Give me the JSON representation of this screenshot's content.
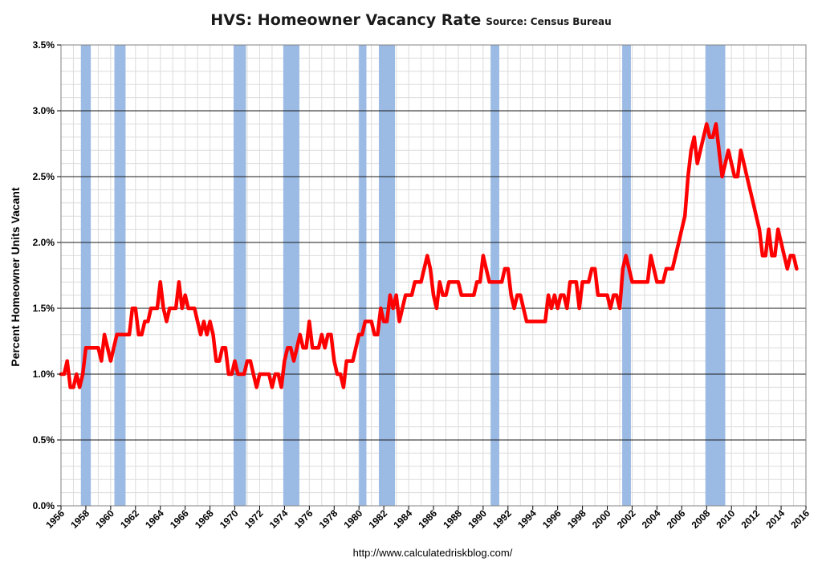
{
  "header": {
    "title": "HVS: Homeowner Vacancy Rate",
    "source": "Source: Census Bureau"
  },
  "footer": {
    "url": "http://www.calculatedriskblog.com/"
  },
  "chart_data": {
    "type": "line",
    "title": "HVS: Homeowner Vacancy Rate",
    "subtitle": "Source: Census Bureau",
    "xlabel": "",
    "ylabel": "Percent Homeowner Units Vacant",
    "xlim": [
      1956,
      2016
    ],
    "ylim": [
      0,
      3.5
    ],
    "x_ticks": [
      "1956",
      "1958",
      "1960",
      "1962",
      "1964",
      "1966",
      "1968",
      "1970",
      "1972",
      "1974",
      "1976",
      "1978",
      "1980",
      "1982",
      "1984",
      "1986",
      "1988",
      "1990",
      "1992",
      "1994",
      "1996",
      "1998",
      "2000",
      "2002",
      "2004",
      "2006",
      "2008",
      "2010",
      "2012",
      "2014",
      "2016"
    ],
    "y_ticks": [
      "0.0%",
      "0.5%",
      "1.0%",
      "1.5%",
      "2.0%",
      "2.5%",
      "3.0%",
      "3.5%"
    ],
    "grid": true,
    "line_color": "#ff0000",
    "recession_color": "#9bbbe4",
    "recessions": [
      [
        1957.6,
        1958.4
      ],
      [
        1960.3,
        1961.2
      ],
      [
        1969.9,
        1970.9
      ],
      [
        1973.9,
        1975.2
      ],
      [
        1980.0,
        1980.6
      ],
      [
        1981.6,
        1982.9
      ],
      [
        1990.6,
        1991.3
      ],
      [
        2001.2,
        2001.9
      ],
      [
        2007.9,
        2009.5
      ]
    ],
    "series": [
      {
        "points": [
          [
            1956.0,
            1.0
          ],
          [
            1956.25,
            1.0
          ],
          [
            1956.5,
            1.1
          ],
          [
            1956.75,
            0.9
          ],
          [
            1957.0,
            0.9
          ],
          [
            1957.25,
            1.0
          ],
          [
            1957.5,
            0.9
          ],
          [
            1957.75,
            1.0
          ],
          [
            1958.0,
            1.2
          ],
          [
            1958.5,
            1.2
          ],
          [
            1959.0,
            1.2
          ],
          [
            1959.25,
            1.1
          ],
          [
            1959.5,
            1.3
          ],
          [
            1959.75,
            1.2
          ],
          [
            1960.0,
            1.1
          ],
          [
            1960.25,
            1.2
          ],
          [
            1960.5,
            1.3
          ],
          [
            1961.0,
            1.3
          ],
          [
            1961.5,
            1.3
          ],
          [
            1961.75,
            1.5
          ],
          [
            1962.0,
            1.5
          ],
          [
            1962.25,
            1.3
          ],
          [
            1962.5,
            1.3
          ],
          [
            1962.75,
            1.4
          ],
          [
            1963.0,
            1.4
          ],
          [
            1963.25,
            1.5
          ],
          [
            1963.75,
            1.5
          ],
          [
            1964.0,
            1.7
          ],
          [
            1964.25,
            1.5
          ],
          [
            1964.5,
            1.4
          ],
          [
            1964.75,
            1.5
          ],
          [
            1965.0,
            1.5
          ],
          [
            1965.25,
            1.5
          ],
          [
            1965.5,
            1.7
          ],
          [
            1965.75,
            1.5
          ],
          [
            1966.0,
            1.6
          ],
          [
            1966.25,
            1.5
          ],
          [
            1966.5,
            1.5
          ],
          [
            1966.75,
            1.5
          ],
          [
            1967.0,
            1.4
          ],
          [
            1967.25,
            1.3
          ],
          [
            1967.5,
            1.4
          ],
          [
            1967.75,
            1.3
          ],
          [
            1968.0,
            1.4
          ],
          [
            1968.25,
            1.3
          ],
          [
            1968.5,
            1.1
          ],
          [
            1968.75,
            1.1
          ],
          [
            1969.0,
            1.2
          ],
          [
            1969.25,
            1.2
          ],
          [
            1969.5,
            1.0
          ],
          [
            1969.75,
            1.0
          ],
          [
            1970.0,
            1.1
          ],
          [
            1970.25,
            1.0
          ],
          [
            1970.5,
            1.0
          ],
          [
            1970.75,
            1.0
          ],
          [
            1971.0,
            1.1
          ],
          [
            1971.25,
            1.1
          ],
          [
            1971.5,
            1.0
          ],
          [
            1971.75,
            0.9
          ],
          [
            1972.0,
            1.0
          ],
          [
            1972.5,
            1.0
          ],
          [
            1972.75,
            1.0
          ],
          [
            1973.0,
            0.9
          ],
          [
            1973.25,
            1.0
          ],
          [
            1973.5,
            1.0
          ],
          [
            1973.75,
            0.9
          ],
          [
            1974.0,
            1.1
          ],
          [
            1974.25,
            1.2
          ],
          [
            1974.5,
            1.2
          ],
          [
            1974.75,
            1.1
          ],
          [
            1975.0,
            1.2
          ],
          [
            1975.25,
            1.3
          ],
          [
            1975.5,
            1.2
          ],
          [
            1975.75,
            1.2
          ],
          [
            1976.0,
            1.4
          ],
          [
            1976.25,
            1.2
          ],
          [
            1976.5,
            1.2
          ],
          [
            1976.75,
            1.2
          ],
          [
            1977.0,
            1.3
          ],
          [
            1977.25,
            1.2
          ],
          [
            1977.5,
            1.3
          ],
          [
            1977.75,
            1.3
          ],
          [
            1978.0,
            1.1
          ],
          [
            1978.25,
            1.0
          ],
          [
            1978.5,
            1.0
          ],
          [
            1978.75,
            0.9
          ],
          [
            1979.0,
            1.1
          ],
          [
            1979.25,
            1.1
          ],
          [
            1979.5,
            1.1
          ],
          [
            1979.75,
            1.2
          ],
          [
            1980.0,
            1.3
          ],
          [
            1980.25,
            1.3
          ],
          [
            1980.5,
            1.4
          ],
          [
            1980.75,
            1.4
          ],
          [
            1981.0,
            1.4
          ],
          [
            1981.25,
            1.3
          ],
          [
            1981.5,
            1.3
          ],
          [
            1981.75,
            1.5
          ],
          [
            1982.0,
            1.4
          ],
          [
            1982.25,
            1.4
          ],
          [
            1982.5,
            1.6
          ],
          [
            1982.75,
            1.5
          ],
          [
            1983.0,
            1.6
          ],
          [
            1983.25,
            1.4
          ],
          [
            1983.5,
            1.5
          ],
          [
            1983.75,
            1.6
          ],
          [
            1984.0,
            1.6
          ],
          [
            1984.25,
            1.6
          ],
          [
            1984.5,
            1.7
          ],
          [
            1984.75,
            1.7
          ],
          [
            1985.0,
            1.7
          ],
          [
            1985.25,
            1.8
          ],
          [
            1985.5,
            1.9
          ],
          [
            1985.75,
            1.8
          ],
          [
            1986.0,
            1.6
          ],
          [
            1986.25,
            1.5
          ],
          [
            1986.5,
            1.7
          ],
          [
            1986.75,
            1.6
          ],
          [
            1987.0,
            1.6
          ],
          [
            1987.25,
            1.7
          ],
          [
            1987.5,
            1.7
          ],
          [
            1987.75,
            1.7
          ],
          [
            1988.0,
            1.7
          ],
          [
            1988.25,
            1.6
          ],
          [
            1988.5,
            1.6
          ],
          [
            1988.75,
            1.6
          ],
          [
            1989.0,
            1.6
          ],
          [
            1989.25,
            1.6
          ],
          [
            1989.5,
            1.7
          ],
          [
            1989.75,
            1.7
          ],
          [
            1990.0,
            1.9
          ],
          [
            1990.25,
            1.8
          ],
          [
            1990.5,
            1.7
          ],
          [
            1990.75,
            1.7
          ],
          [
            1991.0,
            1.7
          ],
          [
            1991.25,
            1.7
          ],
          [
            1991.5,
            1.7
          ],
          [
            1991.75,
            1.8
          ],
          [
            1992.0,
            1.8
          ],
          [
            1992.25,
            1.6
          ],
          [
            1992.5,
            1.5
          ],
          [
            1992.75,
            1.6
          ],
          [
            1993.0,
            1.6
          ],
          [
            1993.25,
            1.5
          ],
          [
            1993.5,
            1.4
          ],
          [
            1993.75,
            1.4
          ],
          [
            1994.0,
            1.4
          ],
          [
            1994.25,
            1.4
          ],
          [
            1994.5,
            1.4
          ],
          [
            1994.75,
            1.4
          ],
          [
            1995.0,
            1.4
          ],
          [
            1995.25,
            1.6
          ],
          [
            1995.5,
            1.5
          ],
          [
            1995.75,
            1.6
          ],
          [
            1996.0,
            1.5
          ],
          [
            1996.25,
            1.6
          ],
          [
            1996.5,
            1.6
          ],
          [
            1996.75,
            1.5
          ],
          [
            1997.0,
            1.7
          ],
          [
            1997.25,
            1.7
          ],
          [
            1997.5,
            1.7
          ],
          [
            1997.75,
            1.5
          ],
          [
            1998.0,
            1.7
          ],
          [
            1998.25,
            1.7
          ],
          [
            1998.5,
            1.7
          ],
          [
            1998.75,
            1.8
          ],
          [
            1999.0,
            1.8
          ],
          [
            1999.25,
            1.6
          ],
          [
            1999.5,
            1.6
          ],
          [
            1999.75,
            1.6
          ],
          [
            2000.0,
            1.6
          ],
          [
            2000.25,
            1.5
          ],
          [
            2000.5,
            1.6
          ],
          [
            2000.75,
            1.6
          ],
          [
            2001.0,
            1.5
          ],
          [
            2001.25,
            1.8
          ],
          [
            2001.5,
            1.9
          ],
          [
            2001.75,
            1.8
          ],
          [
            2002.0,
            1.7
          ],
          [
            2002.25,
            1.7
          ],
          [
            2002.5,
            1.7
          ],
          [
            2002.75,
            1.7
          ],
          [
            2003.0,
            1.7
          ],
          [
            2003.25,
            1.7
          ],
          [
            2003.5,
            1.9
          ],
          [
            2003.75,
            1.8
          ],
          [
            2004.0,
            1.7
          ],
          [
            2004.25,
            1.7
          ],
          [
            2004.5,
            1.7
          ],
          [
            2004.75,
            1.8
          ],
          [
            2005.0,
            1.8
          ],
          [
            2005.25,
            1.8
          ],
          [
            2005.5,
            1.9
          ],
          [
            2005.75,
            2.0
          ],
          [
            2006.0,
            2.1
          ],
          [
            2006.25,
            2.2
          ],
          [
            2006.5,
            2.5
          ],
          [
            2006.75,
            2.7
          ],
          [
            2007.0,
            2.8
          ],
          [
            2007.25,
            2.6
          ],
          [
            2007.5,
            2.7
          ],
          [
            2007.75,
            2.8
          ],
          [
            2008.0,
            2.9
          ],
          [
            2008.25,
            2.8
          ],
          [
            2008.5,
            2.8
          ],
          [
            2008.75,
            2.9
          ],
          [
            2009.0,
            2.7
          ],
          [
            2009.25,
            2.5
          ],
          [
            2009.5,
            2.6
          ],
          [
            2009.75,
            2.7
          ],
          [
            2010.0,
            2.6
          ],
          [
            2010.25,
            2.5
          ],
          [
            2010.5,
            2.5
          ],
          [
            2010.75,
            2.7
          ],
          [
            2011.0,
            2.6
          ],
          [
            2011.25,
            2.5
          ],
          [
            2011.5,
            2.4
          ],
          [
            2011.75,
            2.3
          ],
          [
            2012.0,
            2.2
          ],
          [
            2012.25,
            2.1
          ],
          [
            2012.5,
            1.9
          ],
          [
            2012.75,
            1.9
          ],
          [
            2013.0,
            2.1
          ],
          [
            2013.25,
            1.9
          ],
          [
            2013.5,
            1.9
          ],
          [
            2013.75,
            2.1
          ],
          [
            2014.0,
            2.0
          ],
          [
            2014.25,
            1.9
          ],
          [
            2014.5,
            1.8
          ],
          [
            2014.75,
            1.9
          ],
          [
            2015.0,
            1.9
          ],
          [
            2015.25,
            1.8
          ]
        ]
      }
    ]
  }
}
